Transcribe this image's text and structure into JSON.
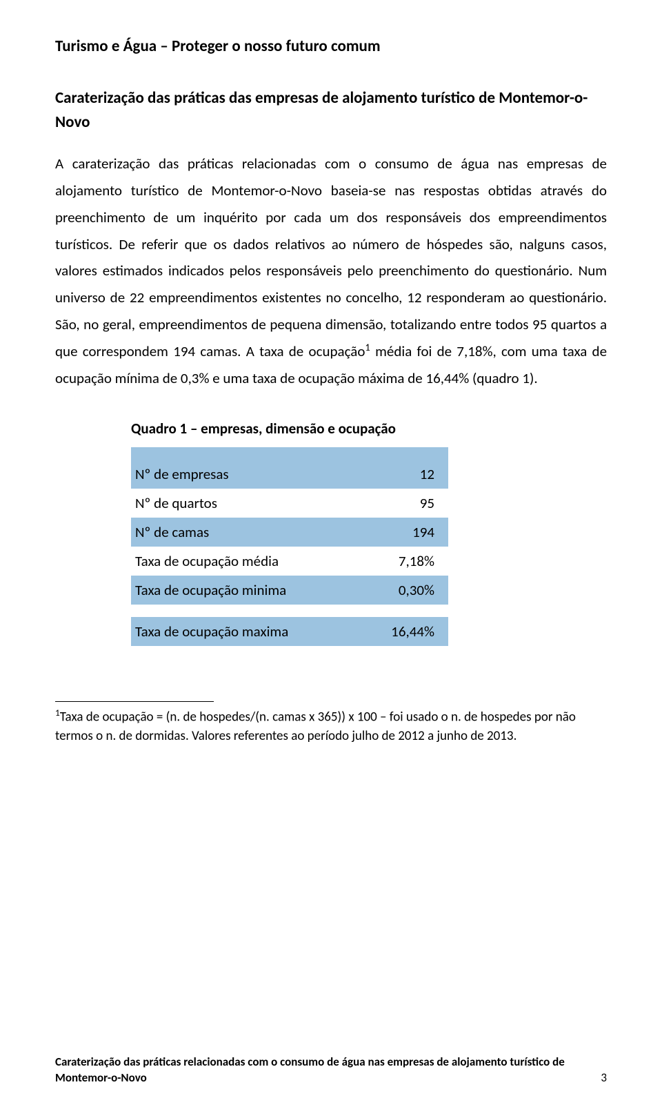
{
  "heading": "Turismo e Água – Proteger o nosso futuro comum",
  "subheading": "Caraterização das práticas das empresas de alojamento turístico de Montemor-o-Novo",
  "body_html": "A caraterização das práticas relacionadas com o consumo de água nas empresas de alojamento turístico de Montemor-o-Novo baseia-se nas respostas obtidas através do preenchimento de um inquérito por cada um dos responsáveis dos empreendimentos turísticos. De referir que os dados relativos ao número de hóspedes são, nalguns casos, valores estimados indicados pelos responsáveis pelo preenchimento do questionário. Num universo de 22 empreendimentos existentes no concelho, 12 responderam ao questionário. São, no geral, empreendimentos de pequena dimensão, totalizando entre todos 95 quartos a que correspondem 194 camas. A taxa de ocupação<sup>1</sup> média foi de 7,18%, com uma taxa de ocupação mínima de 0,3% e uma taxa de ocupação máxima de 16,44% (quadro 1).",
  "table": {
    "title": "Quadro 1 – empresas, dimensão e ocupação",
    "header_bg": "#9cc3e0",
    "alt_bg": "#ffffff",
    "label_fontsize": 21,
    "rows": [
      {
        "label": "Nº de empresas",
        "value": "12",
        "bg": "blue"
      },
      {
        "label": "Nº de quartos",
        "value": "95",
        "bg": "white"
      },
      {
        "label": "Nº de camas",
        "value": "194",
        "bg": "blue"
      },
      {
        "label": "Taxa de ocupação média",
        "value": "7,18%",
        "bg": "white"
      },
      {
        "label": "Taxa de ocupação minima",
        "value": "0,30%",
        "bg": "blue"
      },
      {
        "label": "Taxa de ocupação maxima",
        "value": "16,44%",
        "bg": "blue"
      }
    ],
    "gap_before_last": true
  },
  "footnote_html": "<sup>1</sup>Taxa de ocupação = (n. de hospedes/(n. camas x 365)) x 100 – foi usado o n. de hospedes por não termos o n. de dormidas. Valores referentes ao período julho de 2012 a junho de 2013.",
  "footer_text": "Caraterização das práticas relacionadas com o consumo de água nas empresas de alojamento turístico de Montemor-o-Novo",
  "page_number": "3",
  "colors": {
    "text": "#000000",
    "background": "#ffffff",
    "table_blue": "#9cc3e0"
  }
}
